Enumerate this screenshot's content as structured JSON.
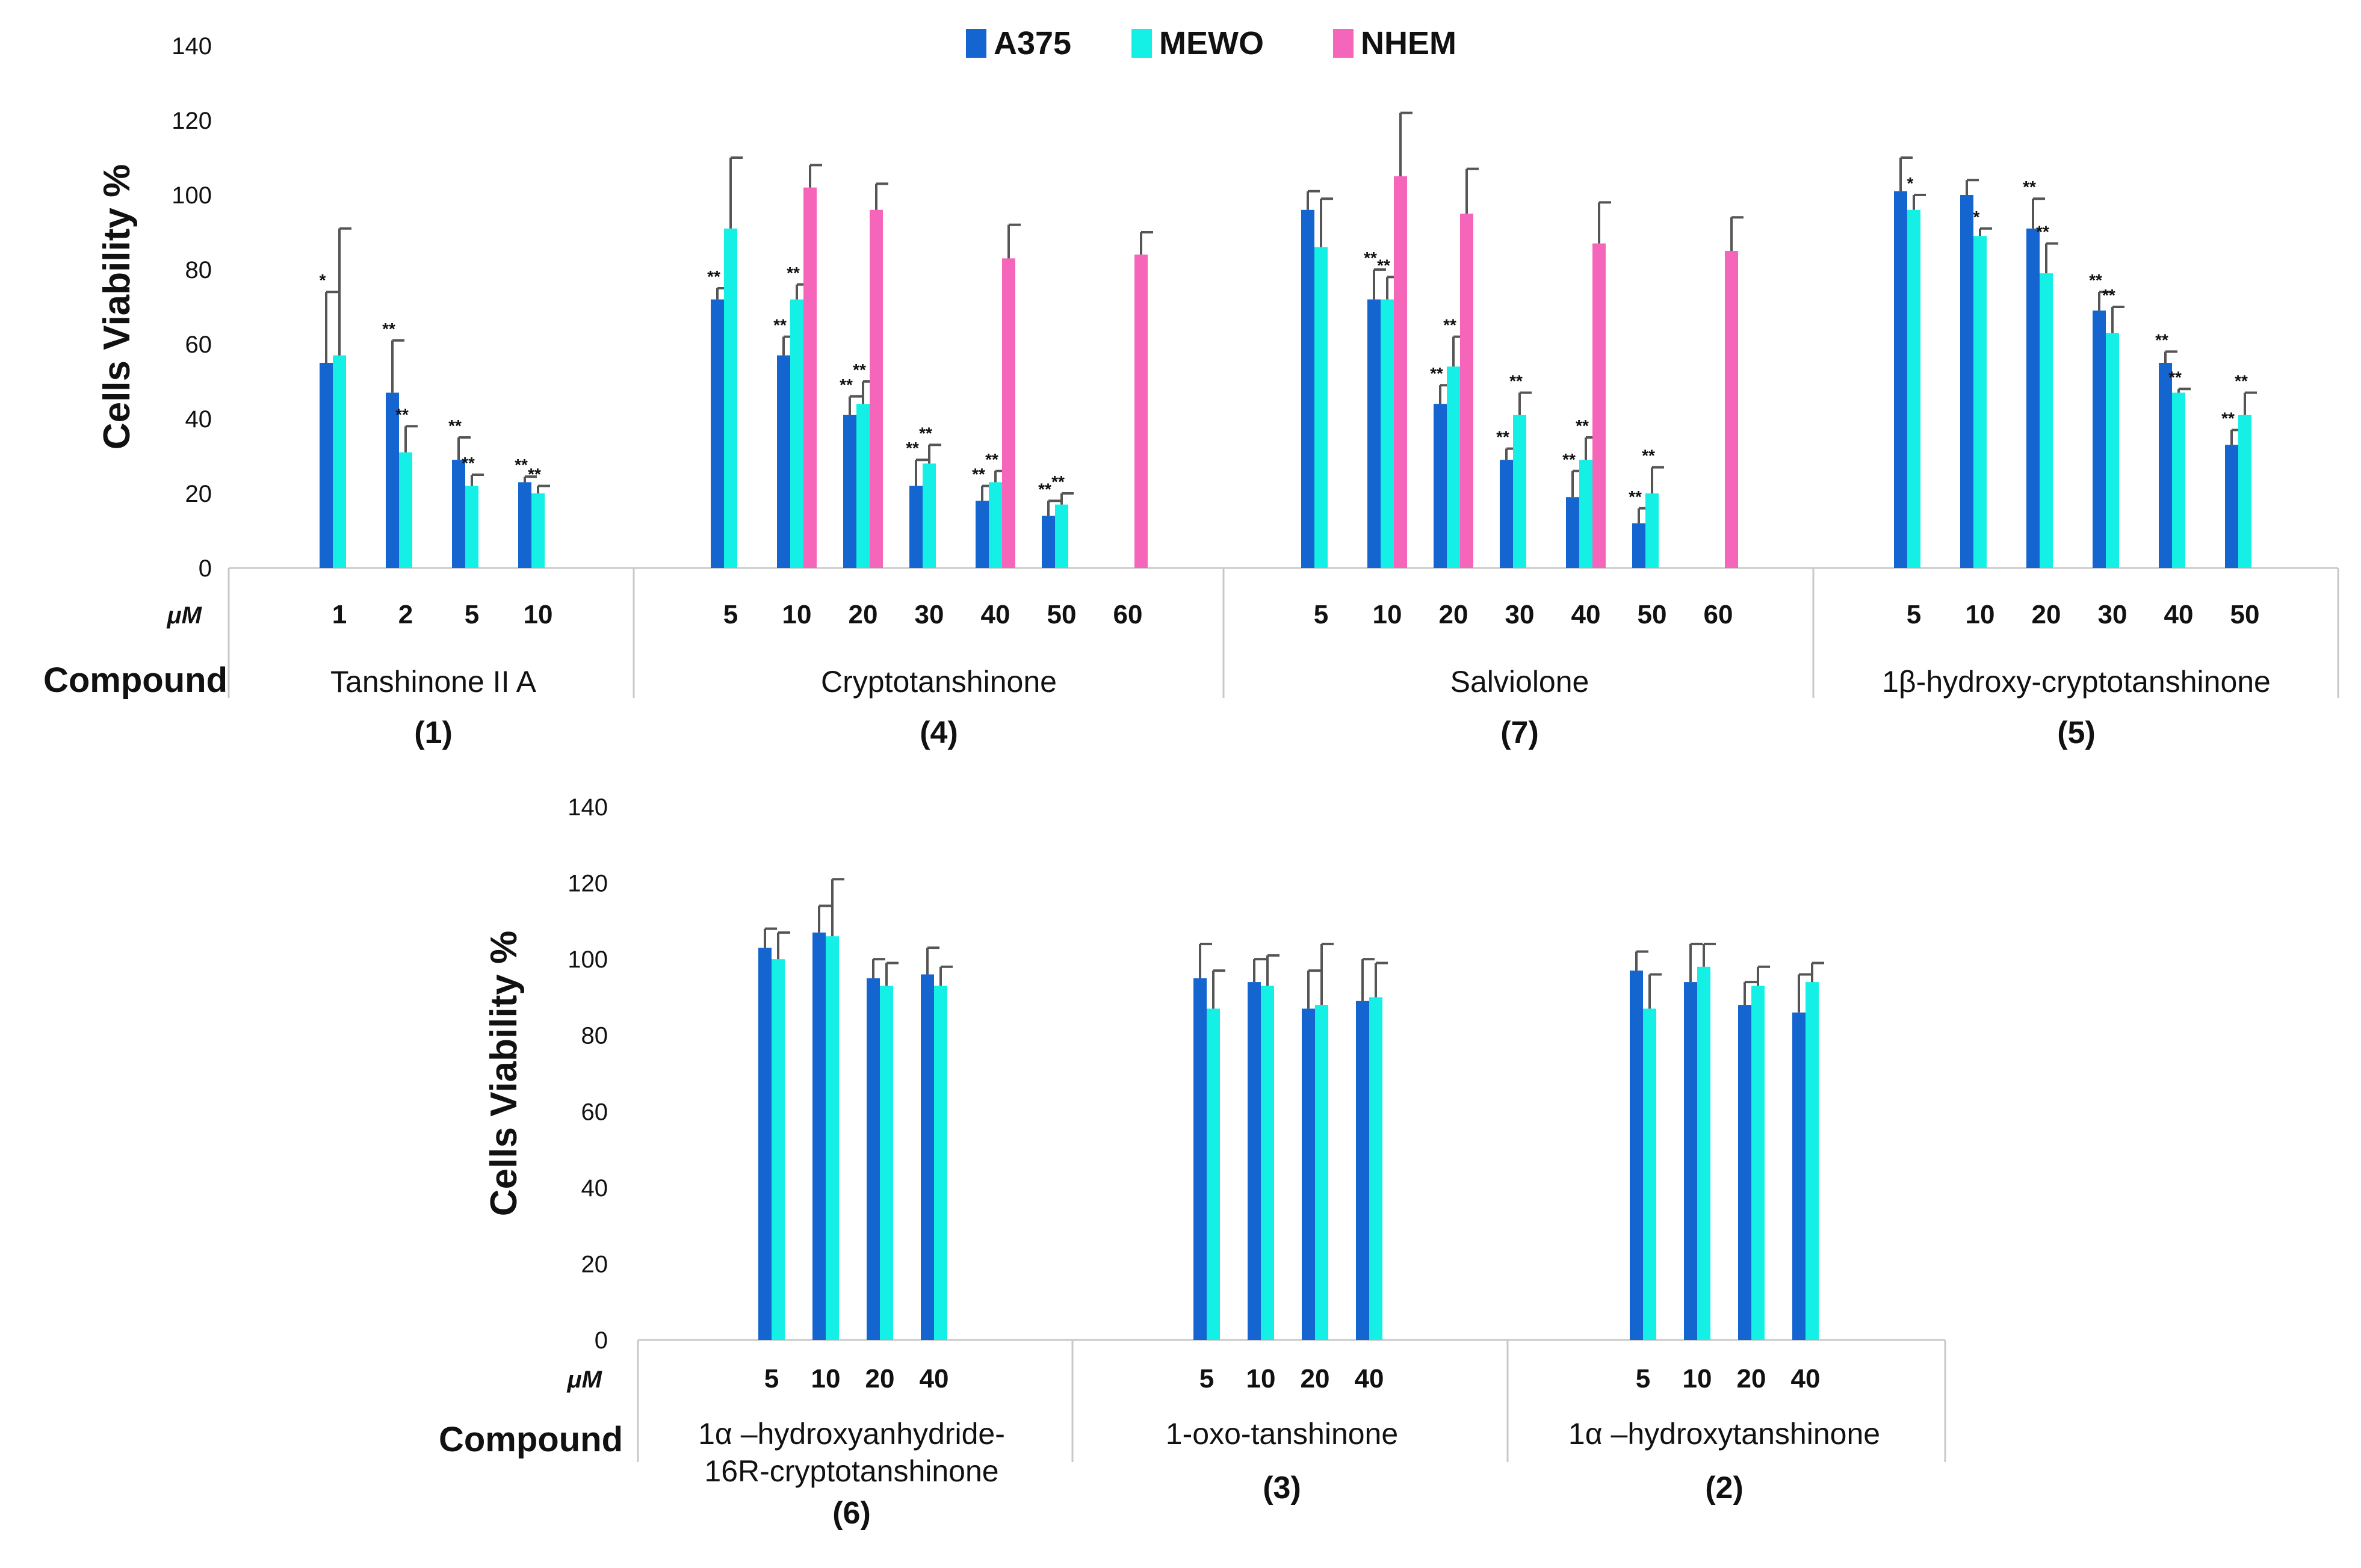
{
  "colors": {
    "A375": "#1565d0",
    "MEWO": "#14f0e6",
    "NHEM": "#f566bb",
    "errorbar": "#555555",
    "axis": "#c8c8c8"
  },
  "legend": [
    {
      "label": "A375",
      "color": "#1565d0"
    },
    {
      "label": "MEWO",
      "color": "#14f0e6"
    },
    {
      "label": "NHEM",
      "color": "#f566bb"
    }
  ],
  "chart_data": [
    {
      "type": "bar",
      "ylabel": "Cells Viability %",
      "unit_label": "μM",
      "xaxis_title": "Compound",
      "ylim": [
        0,
        140
      ],
      "yticks": [
        0,
        20,
        40,
        60,
        80,
        100,
        120,
        140
      ],
      "series_names": [
        "A375",
        "MEWO",
        "NHEM"
      ],
      "groups": [
        {
          "name": "Tanshinone II A",
          "number": "(1)",
          "concentrations": [
            "1",
            "2",
            "5",
            "10"
          ],
          "series": [
            {
              "name": "A375",
              "values": [
                55,
                47,
                29,
                23
              ],
              "errors": [
                19,
                14,
                6,
                1.5
              ],
              "sig": [
                "*",
                "**",
                "**",
                "**"
              ]
            },
            {
              "name": "MEWO",
              "values": [
                57,
                31,
                22,
                20
              ],
              "errors": [
                34,
                7,
                3,
                2
              ],
              "sig": [
                "",
                "**",
                "**",
                "**"
              ]
            },
            {
              "name": "NHEM",
              "values": [
                null,
                null,
                null,
                null
              ],
              "errors": [
                null,
                null,
                null,
                null
              ],
              "sig": [
                "",
                "",
                "",
                ""
              ]
            }
          ]
        },
        {
          "name": "Cryptotanshinone",
          "number": "(4)",
          "concentrations": [
            "5",
            "10",
            "20",
            "30",
            "40",
            "50",
            "60"
          ],
          "series": [
            {
              "name": "A375",
              "values": [
                72,
                57,
                41,
                22,
                18,
                14,
                null
              ],
              "errors": [
                3,
                5,
                5,
                7,
                4,
                4,
                null
              ],
              "sig": [
                "**",
                "**",
                "**",
                "**",
                "**",
                "**",
                ""
              ]
            },
            {
              "name": "MEWO",
              "values": [
                91,
                72,
                44,
                28,
                23,
                17,
                null
              ],
              "errors": [
                19,
                4,
                6,
                5,
                3,
                3,
                null
              ],
              "sig": [
                "",
                "**",
                "**",
                "**",
                "**",
                "**",
                ""
              ]
            },
            {
              "name": "NHEM",
              "values": [
                null,
                102,
                96,
                null,
                83,
                null,
                84
              ],
              "errors": [
                null,
                6,
                7,
                null,
                9,
                null,
                6
              ],
              "sig": [
                "",
                "",
                "",
                "",
                "",
                "",
                ""
              ]
            }
          ]
        },
        {
          "name": "Salviolone",
          "number": "(7)",
          "concentrations": [
            "5",
            "10",
            "20",
            "30",
            "40",
            "50",
            "60"
          ],
          "series": [
            {
              "name": "A375",
              "values": [
                96,
                72,
                44,
                29,
                19,
                12,
                null
              ],
              "errors": [
                5,
                8,
                5,
                3,
                7,
                4,
                null
              ],
              "sig": [
                "",
                "**",
                "**",
                "**",
                "**",
                "**",
                ""
              ]
            },
            {
              "name": "MEWO",
              "values": [
                86,
                72,
                54,
                41,
                29,
                20,
                null
              ],
              "errors": [
                13,
                6,
                8,
                6,
                6,
                7,
                null
              ],
              "sig": [
                "",
                "**",
                "**",
                "**",
                "**",
                "**",
                ""
              ]
            },
            {
              "name": "NHEM",
              "values": [
                null,
                105,
                95,
                null,
                87,
                null,
                85
              ],
              "errors": [
                null,
                17,
                12,
                null,
                11,
                null,
                9
              ],
              "sig": [
                "",
                "",
                "",
                "",
                "",
                "",
                ""
              ]
            }
          ]
        },
        {
          "name": "1β-hydroxy-cryptotanshinone",
          "number": "(5)",
          "concentrations": [
            "5",
            "10",
            "20",
            "30",
            "40",
            "50"
          ],
          "series": [
            {
              "name": "A375",
              "values": [
                101,
                100,
                91,
                69,
                55,
                33
              ],
              "errors": [
                9,
                4,
                8,
                5,
                3,
                4
              ],
              "sig": [
                "",
                "",
                "**",
                "**",
                "**",
                "**"
              ]
            },
            {
              "name": "MEWO",
              "values": [
                96,
                89,
                79,
                63,
                47,
                41
              ],
              "errors": [
                4,
                2,
                8,
                7,
                1,
                6
              ],
              "sig": [
                "*",
                "*",
                "**",
                "**",
                "**",
                "**"
              ]
            },
            {
              "name": "NHEM",
              "values": [
                null,
                null,
                null,
                null,
                null,
                null
              ],
              "errors": [
                null,
                null,
                null,
                null,
                null,
                null
              ],
              "sig": [
                "",
                "",
                "",
                "",
                "",
                ""
              ]
            }
          ]
        }
      ]
    },
    {
      "type": "bar",
      "ylabel": "Cells Viability %",
      "unit_label": "μM",
      "xaxis_title": "Compound",
      "ylim": [
        0,
        140
      ],
      "yticks": [
        0,
        20,
        40,
        60,
        80,
        100,
        120,
        140
      ],
      "series_names": [
        "A375",
        "MEWO"
      ],
      "groups": [
        {
          "name": "1α –hydroxyanhydride-16R-cryptotanshinone",
          "name_lines": [
            "1α –hydroxyanhydride-",
            "16R-cryptotanshinone"
          ],
          "number": "(6)",
          "concentrations": [
            "5",
            "10",
            "20",
            "40"
          ],
          "series": [
            {
              "name": "A375",
              "values": [
                103,
                107,
                95,
                96
              ],
              "errors": [
                5,
                7,
                5,
                7
              ]
            },
            {
              "name": "MEWO",
              "values": [
                100,
                106,
                93,
                93
              ],
              "errors": [
                7,
                15,
                6,
                5
              ]
            }
          ]
        },
        {
          "name": "1-oxo-tanshinone",
          "number": "(3)",
          "concentrations": [
            "5",
            "10",
            "20",
            "40"
          ],
          "series": [
            {
              "name": "A375",
              "values": [
                95,
                94,
                87,
                89
              ],
              "errors": [
                9,
                6,
                10,
                11
              ]
            },
            {
              "name": "MEWO",
              "values": [
                87,
                93,
                88,
                90
              ],
              "errors": [
                10,
                8,
                16,
                9
              ]
            }
          ]
        },
        {
          "name": "1α –hydroxytanshinone",
          "number": "(2)",
          "concentrations": [
            "5",
            "10",
            "20",
            "40"
          ],
          "series": [
            {
              "name": "A375",
              "values": [
                97,
                94,
                88,
                86
              ],
              "errors": [
                5,
                10,
                6,
                10
              ]
            },
            {
              "name": "MEWO",
              "values": [
                87,
                98,
                93,
                94
              ],
              "errors": [
                9,
                6,
                5,
                5
              ]
            }
          ]
        }
      ]
    }
  ]
}
